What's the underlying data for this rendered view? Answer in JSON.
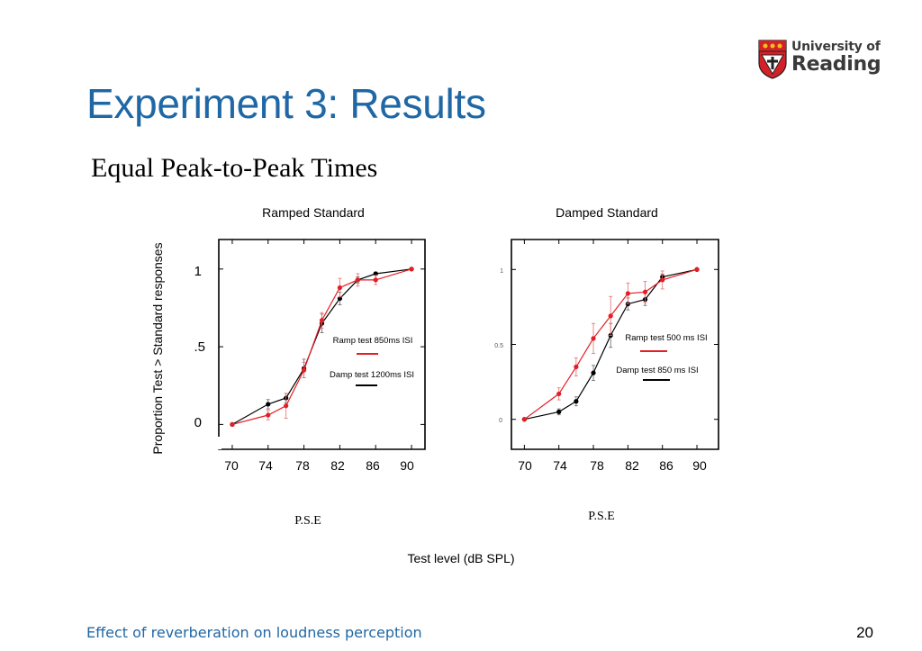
{
  "header": {
    "logo_line1": "University of",
    "logo_line2": "Reading",
    "title": "Experiment 3: Results",
    "subtitle": "Equal Peak-to-Peak Times"
  },
  "chart_data": [
    {
      "type": "line",
      "title": "Ramped Standard",
      "ylabel": "Proportion Test > Standard responses",
      "xlabel": "P.S.E",
      "xlim": [
        68.5,
        91.5
      ],
      "ylim": [
        -0.16,
        1.19
      ],
      "xticks": [
        70,
        74,
        78,
        82,
        86,
        90
      ],
      "xtick_labels": [
        "70",
        "74",
        "78",
        "82",
        "86",
        "90"
      ],
      "yticks": [
        0,
        0.5,
        1
      ],
      "ytick_labels": [
        "0",
        ".5",
        "1"
      ],
      "series": [
        {
          "name": "Ramp test 850ms ISI",
          "color": "#e31e24",
          "x": [
            70,
            74,
            76,
            78,
            80,
            82,
            84,
            86,
            90
          ],
          "y": [
            0,
            0.06,
            0.12,
            0.35,
            0.67,
            0.88,
            0.93,
            0.93,
            1
          ],
          "err": [
            0,
            0.03,
            0.08,
            0.05,
            0.05,
            0.06,
            0.04,
            0.03,
            0
          ]
        },
        {
          "name": "Damp test 1200ms ISI",
          "color": "#000000",
          "x": [
            70,
            74,
            76,
            78,
            80,
            82,
            84,
            86,
            90
          ],
          "y": [
            0,
            0.13,
            0.17,
            0.36,
            0.65,
            0.81,
            0.93,
            0.97,
            1
          ],
          "err": [
            0,
            0.03,
            0.03,
            0.06,
            0.06,
            0.04,
            0.02,
            0.01,
            0
          ]
        }
      ]
    },
    {
      "type": "line",
      "title": "Damped Standard",
      "xlabel": "P.S.E",
      "xlim": [
        68.5,
        92.5
      ],
      "ylim": [
        -0.2,
        1.2
      ],
      "xticks": [
        70,
        74,
        78,
        82,
        86,
        90
      ],
      "xtick_labels": [
        "70",
        "74",
        "78",
        "82",
        "86",
        "90"
      ],
      "yticks": [
        0,
        0.5,
        1
      ],
      "ytick_labels": [
        "0",
        "0.5",
        "1"
      ],
      "series": [
        {
          "name": "Ramp test 500 ms ISI",
          "color": "#e31e24",
          "x": [
            70,
            74,
            76,
            78,
            80,
            82,
            84,
            86,
            90
          ],
          "y": [
            0,
            0.17,
            0.35,
            0.54,
            0.69,
            0.84,
            0.85,
            0.93,
            1
          ],
          "err": [
            0,
            0.04,
            0.06,
            0.1,
            0.13,
            0.07,
            0.07,
            0.06,
            0
          ]
        },
        {
          "name": "Damp test 850 ms ISI",
          "color": "#000000",
          "x": [
            70,
            74,
            76,
            78,
            80,
            82,
            84,
            86,
            90
          ],
          "y": [
            0,
            0.05,
            0.12,
            0.31,
            0.56,
            0.77,
            0.8,
            0.95,
            1
          ],
          "err": [
            0,
            0.02,
            0.03,
            0.05,
            0.08,
            0.04,
            0.04,
            0.02,
            0
          ]
        }
      ]
    }
  ],
  "shared_xlabel": "Test level (dB SPL)",
  "footer": {
    "text": "Effect of reverberation on loudness perception",
    "page": "20"
  }
}
